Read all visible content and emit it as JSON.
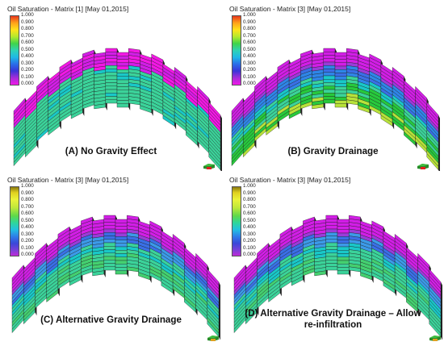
{
  "panels": [
    {
      "title": "Oil Saturation - Matrix [1] [May 01,2015]",
      "caption_lines": [
        "(A) No Gravity Effect"
      ],
      "palette": "A",
      "icon": "axes-icon"
    },
    {
      "title": "Oil Saturation - Matrix [3] [May 01,2015]",
      "caption_lines": [
        "(B) Gravity Drainage"
      ],
      "palette": "B",
      "icon": "axes-icon"
    },
    {
      "title": "Oil Saturation - Matrix [3] [May 01,2015]",
      "caption_lines": [
        "(C) Alternative Gravity Drainage"
      ],
      "palette": "C",
      "icon": "axes-icon"
    },
    {
      "title": "Oil Saturation - Matrix [3] [May 01,2015]",
      "caption_lines": [
        "(D) Alternative Gravity Drainage – Allow",
        "re-infiltration"
      ],
      "palette": "D",
      "icon": "axes-icon"
    }
  ],
  "scale_ticks": [
    "1.000",
    "0.900",
    "0.800",
    "0.700",
    "0.600",
    "0.500",
    "0.400",
    "0.300",
    "0.200",
    "0.100",
    "0.000"
  ],
  "colors": {
    "pink": "#f218e4",
    "magenta": "#d21ee6",
    "violet": "#9a3cd8",
    "blue": "#3a6fe6",
    "cyan": "#19c8c8",
    "teal_green": "#3bd39a",
    "green": "#27c93c",
    "yellow_green": "#b8e23a"
  }
}
